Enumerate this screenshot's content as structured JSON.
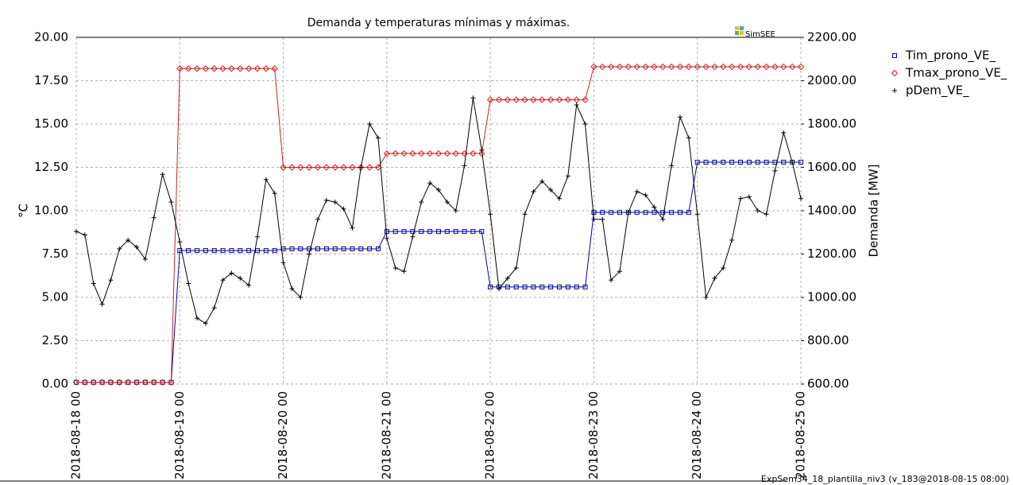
{
  "chart_data": {
    "type": "line",
    "title": "Demanda y temperaturas mínimas y máximas.",
    "logo": "SimSEE",
    "footer": "ExpSem34_18_plantilla_niv3 (v_183@2018-08-15 08:00)",
    "ylabel": "°C",
    "y2label": "Demanda [MW]",
    "grid": true,
    "legend": "right",
    "xlim": [
      0,
      168
    ],
    "xticks": [
      {
        "value": 0,
        "label": "2018-08-18 00"
      },
      {
        "value": 24,
        "label": "2018-08-19 00"
      },
      {
        "value": 48,
        "label": "2018-08-20 00"
      },
      {
        "value": 72,
        "label": "2018-08-21 00"
      },
      {
        "value": 96,
        "label": "2018-08-22 00"
      },
      {
        "value": 120,
        "label": "2018-08-23 00"
      },
      {
        "value": 144,
        "label": "2018-08-24 00"
      },
      {
        "value": 168,
        "label": "2018-08-25 00"
      }
    ],
    "ylim": [
      0,
      20
    ],
    "yticks": [
      {
        "value": 0,
        "label": "0.00"
      },
      {
        "value": 2.5,
        "label": "2.50"
      },
      {
        "value": 5,
        "label": "5.00"
      },
      {
        "value": 7.5,
        "label": "7.50"
      },
      {
        "value": 10,
        "label": "10.00"
      },
      {
        "value": 12.5,
        "label": "12.50"
      },
      {
        "value": 15,
        "label": "15.00"
      },
      {
        "value": 17.5,
        "label": "17.50"
      },
      {
        "value": 20,
        "label": "20.00"
      }
    ],
    "y2lim": [
      600,
      2200
    ],
    "y2ticks": [
      {
        "value": 600,
        "label": "600.00"
      },
      {
        "value": 800,
        "label": "800.00"
      },
      {
        "value": 1000,
        "label": "1000.00"
      },
      {
        "value": 1200,
        "label": "1200.00"
      },
      {
        "value": 1400,
        "label": "1400.00"
      },
      {
        "value": 1600,
        "label": "1600.00"
      },
      {
        "value": 1800,
        "label": "1800.00"
      },
      {
        "value": 2000,
        "label": "2000.00"
      },
      {
        "value": 2200,
        "label": "2200.00"
      }
    ],
    "x": [
      0,
      2,
      4,
      6,
      8,
      10,
      12,
      14,
      16,
      18,
      20,
      22,
      24,
      26,
      28,
      30,
      32,
      34,
      36,
      38,
      40,
      42,
      44,
      46,
      48,
      50,
      52,
      54,
      56,
      58,
      60,
      62,
      64,
      66,
      68,
      70,
      72,
      74,
      76,
      78,
      80,
      82,
      84,
      86,
      88,
      90,
      92,
      94,
      96,
      98,
      100,
      102,
      104,
      106,
      108,
      110,
      112,
      114,
      116,
      118,
      120,
      122,
      124,
      126,
      128,
      130,
      132,
      134,
      136,
      138,
      140,
      142,
      144,
      146,
      148,
      150,
      152,
      154,
      156,
      158,
      160,
      162,
      164,
      166,
      168
    ],
    "series": [
      {
        "name": "Tim_prono_VE_",
        "color": "#0000a0",
        "marker": "square",
        "values": [
          0.1,
          0.1,
          0.1,
          0.1,
          0.1,
          0.1,
          0.1,
          0.1,
          0.1,
          0.1,
          0.1,
          0.1,
          7.7,
          7.7,
          7.7,
          7.7,
          7.7,
          7.7,
          7.7,
          7.7,
          7.7,
          7.7,
          7.7,
          7.7,
          7.8,
          7.8,
          7.8,
          7.8,
          7.8,
          7.8,
          7.8,
          7.8,
          7.8,
          7.8,
          7.8,
          7.8,
          8.8,
          8.8,
          8.8,
          8.8,
          8.8,
          8.8,
          8.8,
          8.8,
          8.8,
          8.8,
          8.8,
          8.8,
          5.6,
          5.6,
          5.6,
          5.6,
          5.6,
          5.6,
          5.6,
          5.6,
          5.6,
          5.6,
          5.6,
          5.6,
          9.9,
          9.9,
          9.9,
          9.9,
          9.9,
          9.9,
          9.9,
          9.9,
          9.9,
          9.9,
          9.9,
          9.9,
          12.8,
          12.8,
          12.8,
          12.8,
          12.8,
          12.8,
          12.8,
          12.8,
          12.8,
          12.8,
          12.8,
          12.8,
          12.8
        ]
      },
      {
        "name": "Tmax_prono_VE_",
        "color": "#d02020",
        "marker": "diamond",
        "values": [
          0.1,
          0.1,
          0.1,
          0.1,
          0.1,
          0.1,
          0.1,
          0.1,
          0.1,
          0.1,
          0.1,
          0.1,
          18.2,
          18.2,
          18.2,
          18.2,
          18.2,
          18.2,
          18.2,
          18.2,
          18.2,
          18.2,
          18.2,
          18.2,
          12.5,
          12.5,
          12.5,
          12.5,
          12.5,
          12.5,
          12.5,
          12.5,
          12.5,
          12.5,
          12.5,
          12.5,
          13.3,
          13.3,
          13.3,
          13.3,
          13.3,
          13.3,
          13.3,
          13.3,
          13.3,
          13.3,
          13.3,
          13.3,
          16.4,
          16.4,
          16.4,
          16.4,
          16.4,
          16.4,
          16.4,
          16.4,
          16.4,
          16.4,
          16.4,
          16.4,
          18.3,
          18.3,
          18.3,
          18.3,
          18.3,
          18.3,
          18.3,
          18.3,
          18.3,
          18.3,
          18.3,
          18.3,
          18.3,
          18.3,
          18.3,
          18.3,
          18.3,
          18.3,
          18.3,
          18.3,
          18.3,
          18.3,
          18.3,
          18.3,
          18.3
        ]
      },
      {
        "name": "pDem_VE_",
        "color": "#000000",
        "marker": "plus",
        "axis": "y2",
        "values": [
          1304,
          1288,
          1064,
          968,
          1080,
          1224,
          1264,
          1232,
          1176,
          1368,
          1568,
          1440,
          1256,
          1064,
          904,
          880,
          952,
          1080,
          1112,
          1088,
          1056,
          1280,
          1544,
          1480,
          1160,
          1040,
          1000,
          1200,
          1360,
          1448,
          1440,
          1408,
          1320,
          1600,
          1800,
          1736,
          1272,
          1136,
          1120,
          1280,
          1440,
          1528,
          1496,
          1440,
          1400,
          1608,
          1920,
          1680,
          1384,
          1040,
          1088,
          1136,
          1384,
          1488,
          1536,
          1496,
          1456,
          1560,
          1888,
          1800,
          1360,
          1360,
          1080,
          1120,
          1392,
          1488,
          1472,
          1416,
          1360,
          1608,
          1832,
          1736,
          1384,
          1000,
          1088,
          1136,
          1264,
          1456,
          1464,
          1400,
          1384,
          1584,
          1760,
          1624,
          1456
        ]
      }
    ]
  }
}
